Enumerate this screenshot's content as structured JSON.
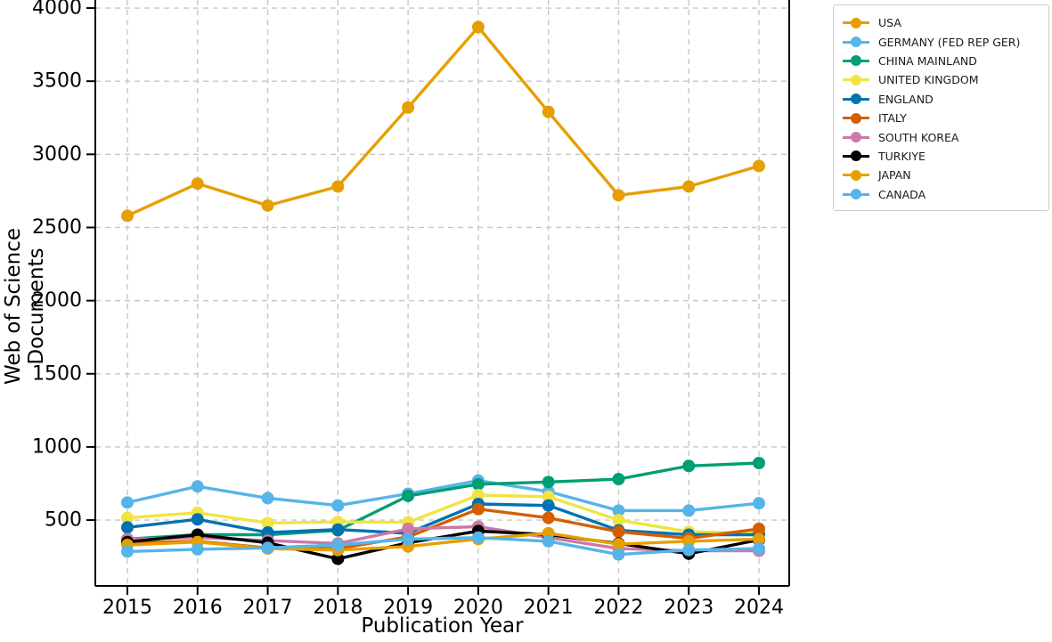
{
  "chart_data": {
    "type": "line",
    "title": "",
    "xlabel": "Publication Year",
    "ylabel": "Web of Science Documents",
    "x": [
      2015,
      2016,
      2017,
      2018,
      2019,
      2020,
      2021,
      2022,
      2023,
      2024
    ],
    "yticks": [
      500,
      1000,
      1500,
      2000,
      2500,
      3000,
      3500,
      4000
    ],
    "ylim": [
      50,
      4055
    ],
    "grid": true,
    "grid_style": "dashed",
    "legend_position": "outside-upper-right",
    "marker": "circle",
    "series": [
      {
        "name": "USA",
        "color": "#E69F00",
        "values": [
          2580,
          2800,
          2650,
          2780,
          3320,
          3870,
          3290,
          2720,
          2780,
          2920
        ]
      },
      {
        "name": "GERMANY (FED REP GER)",
        "color": "#56B4E9",
        "values": [
          620,
          730,
          650,
          600,
          680,
          770,
          695,
          565,
          565,
          615
        ]
      },
      {
        "name": "CHINA MAINLAND",
        "color": "#009E73",
        "values": [
          370,
          400,
          400,
          430,
          665,
          745,
          760,
          780,
          870,
          890
        ]
      },
      {
        "name": "UNITED KINGDOM",
        "color": "#F0E442",
        "values": [
          515,
          550,
          480,
          487,
          485,
          670,
          660,
          500,
          420,
          410
        ]
      },
      {
        "name": "ENGLAND",
        "color": "#0072B2",
        "values": [
          450,
          505,
          415,
          435,
          410,
          610,
          600,
          430,
          400,
          400
        ]
      },
      {
        "name": "ITALY",
        "color": "#D55E00",
        "values": [
          345,
          355,
          310,
          305,
          385,
          575,
          515,
          420,
          375,
          440
        ]
      },
      {
        "name": "SOUTH KOREA",
        "color": "#CC79A7",
        "values": [
          370,
          380,
          360,
          340,
          440,
          455,
          380,
          305,
          290,
          290
        ]
      },
      {
        "name": "TURKIYE",
        "color": "#000000",
        "values": [
          350,
          400,
          345,
          235,
          345,
          425,
          400,
          340,
          270,
          365
        ]
      },
      {
        "name": "JAPAN",
        "color": "#E69F00",
        "values": [
          330,
          350,
          305,
          295,
          320,
          370,
          410,
          335,
          355,
          370
        ]
      },
      {
        "name": "CANADA",
        "color": "#56B4E9",
        "values": [
          285,
          300,
          310,
          330,
          370,
          380,
          355,
          265,
          295,
          305
        ]
      }
    ]
  },
  "style": {
    "grid_color": "#c7c7c7",
    "spine_color": "#000000",
    "tick_label_color": "#000000",
    "background": "#ffffff"
  }
}
